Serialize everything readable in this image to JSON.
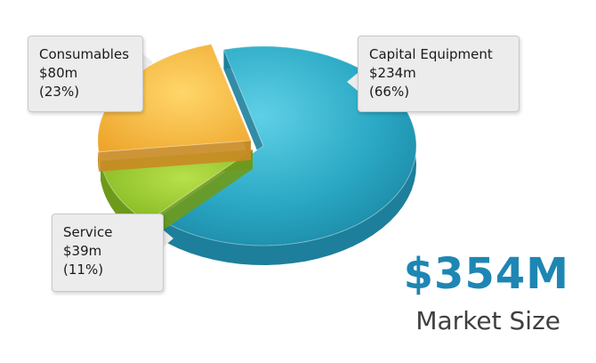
{
  "chart_data": {
    "type": "pie",
    "slices": [
      {
        "label": "Capital Equipment",
        "value": 234,
        "value_label": "$234m",
        "percent_label": "(66%)",
        "color": "#2aa8c4"
      },
      {
        "label": "Service",
        "value": 39,
        "value_label": "$39m",
        "percent_label": "(11%)",
        "color": "#8bbf2a"
      },
      {
        "label": "Consumables",
        "value": 80,
        "value_label": "$80m",
        "percent_label": "(23%)",
        "color": "#f0b13a"
      }
    ]
  },
  "summary": {
    "total": "$354M",
    "label": "Market Size"
  }
}
